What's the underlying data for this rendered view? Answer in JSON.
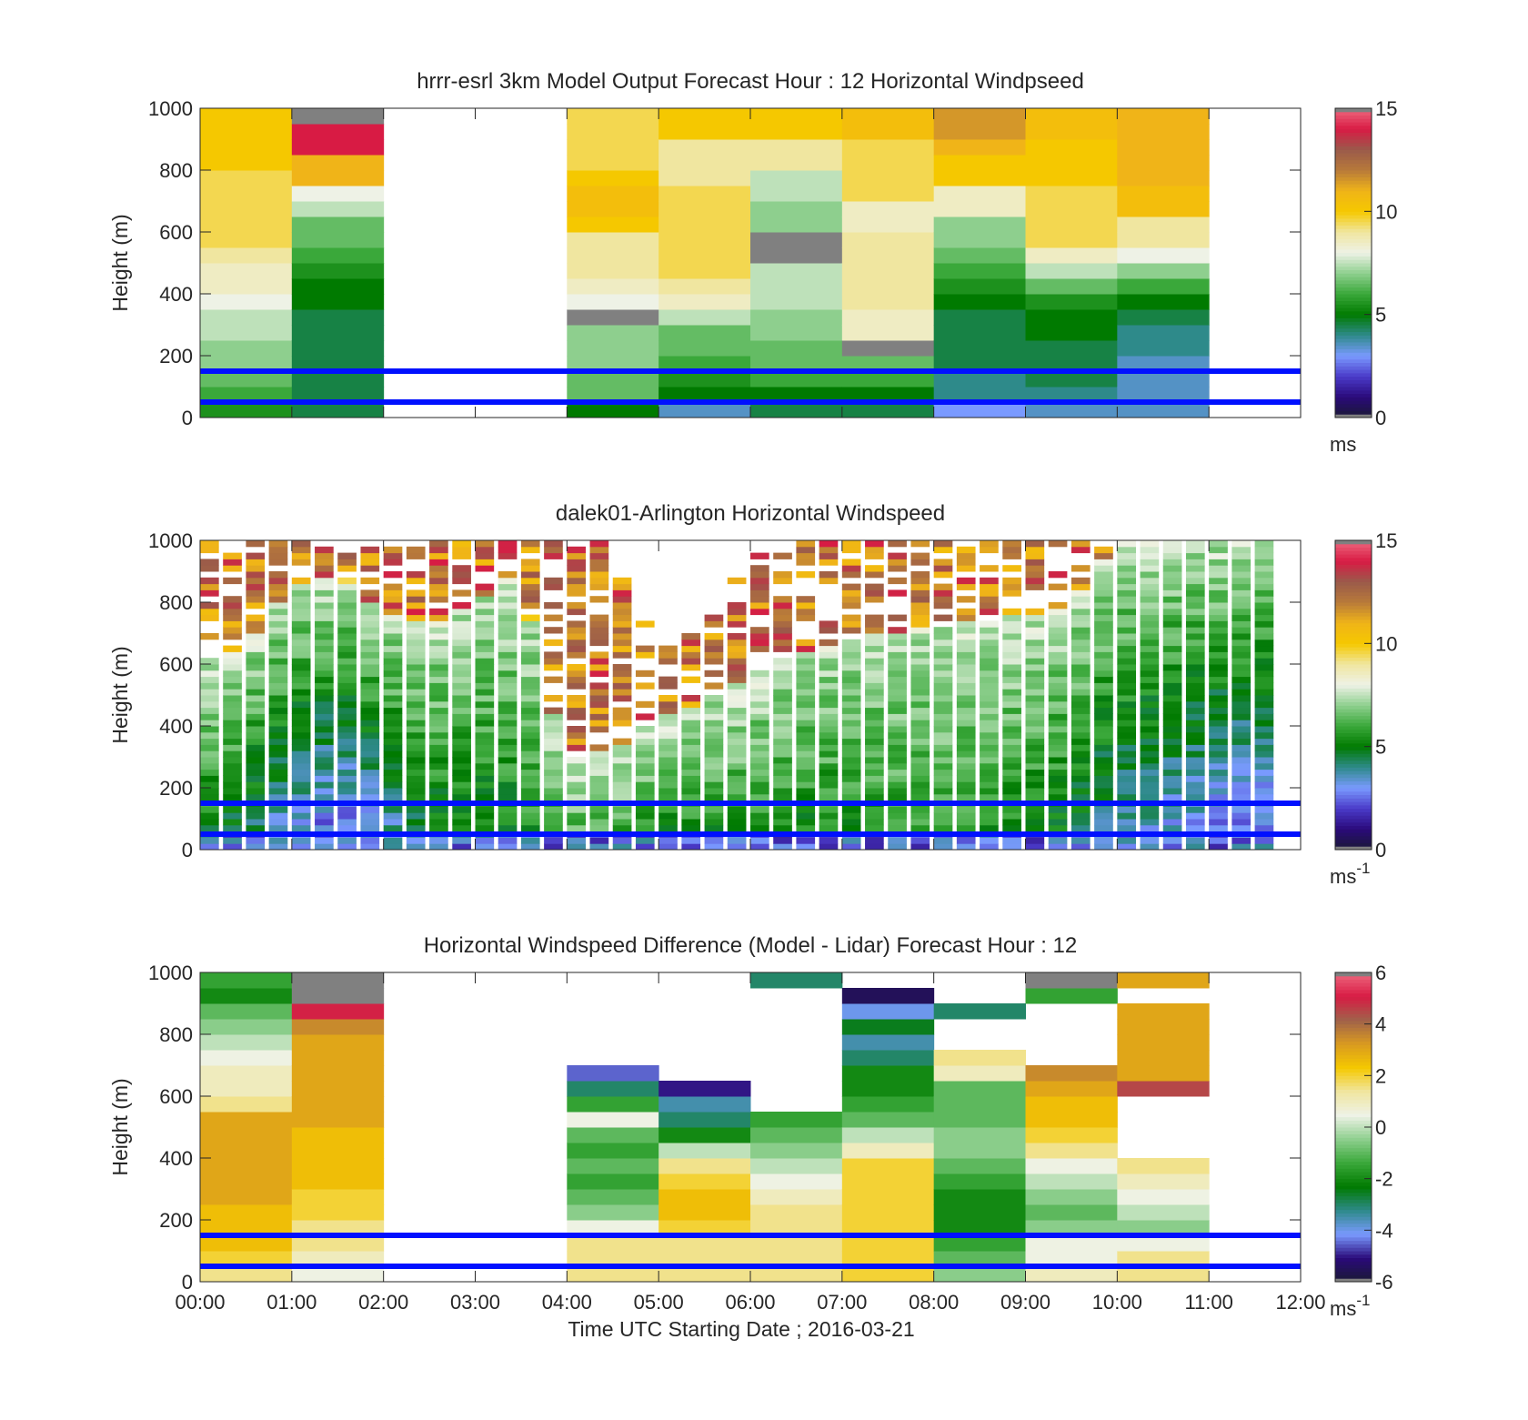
{
  "colors": {
    "speed_scale": [
      "#1a1a33",
      "#2a0a7a",
      "#4a3ac8",
      "#7a9aff",
      "#2e8a8a",
      "#007a00",
      "#3aa83a",
      "#8ecf8e",
      "#eef2e6",
      "#f0e6a0",
      "#f5c800",
      "#f0b418",
      "#b87a3a",
      "#9a5a4a",
      "#d81b44",
      "#ee6a80"
    ],
    "diff_scale": [
      "#1a1a33",
      "#2a0a7a",
      "#7a9aff",
      "#2e8a8a",
      "#007a00",
      "#3aa83a",
      "#8ecf8e",
      "#eef2e6",
      "#f0e6a0",
      "#f5c800",
      "#d99a20",
      "#a0624a",
      "#d81b44",
      "#ee6a80"
    ],
    "reference_lines": "#0010ff",
    "missing": "#808080"
  },
  "reference_heights_m": [
    50,
    150
  ],
  "x_axis": {
    "ticks": [
      "00:00",
      "01:00",
      "02:00",
      "03:00",
      "04:00",
      "05:00",
      "06:00",
      "07:00",
      "08:00",
      "09:00",
      "10:00",
      "11:00",
      "12:00"
    ],
    "label": "Time UTC  Starting Date ; 2016-03-21"
  },
  "chart_data": [
    {
      "type": "heatmap",
      "title": "hrrr-esrl 3km Model Output   Forecast Hour : 12 Horizontal Windpseed",
      "ylabel": "Height (m)",
      "ylim": [
        0,
        1000
      ],
      "yticks": [
        "0",
        "200",
        "400",
        "600",
        "800",
        "1000"
      ],
      "colorbar": {
        "range": [
          0,
          15
        ],
        "ticks": [
          "0",
          "5",
          "10",
          "15"
        ],
        "unit": "ms",
        "unit_sup": ""
      },
      "x": [
        "00:00",
        "01:00",
        "04:00",
        "05:00",
        "06:00",
        "07:00",
        "08:00",
        "09:00",
        "10:00"
      ],
      "heights": [
        25,
        75,
        125,
        175,
        225,
        275,
        325,
        375,
        425,
        475,
        525,
        575,
        625,
        675,
        725,
        775,
        825,
        875,
        925,
        975
      ],
      "values": [
        [
          5.5,
          6,
          6.5,
          7,
          7,
          7.5,
          7.5,
          8,
          8.5,
          8.5,
          9,
          9.5,
          9.5,
          9.5,
          9.5,
          9.5,
          10,
          10,
          10,
          10
        ],
        [
          4.5,
          4.5,
          4.5,
          4.5,
          4.5,
          4.5,
          4.5,
          5,
          5,
          5.5,
          6,
          6.5,
          6.5,
          7.5,
          8,
          11,
          11,
          14,
          14,
          99
        ],
        [
          5,
          6.5,
          6.5,
          7,
          7,
          7,
          99,
          8,
          8.5,
          9,
          9,
          9,
          10,
          10.5,
          10.5,
          10,
          9.5,
          9.5,
          9.5,
          9.5
        ],
        [
          3.5,
          5,
          5.5,
          6,
          6.5,
          6.5,
          7.5,
          8.5,
          9,
          9.5,
          9.5,
          9.5,
          9.5,
          9.5,
          9.5,
          9,
          9,
          9,
          10,
          10
        ],
        [
          4.5,
          5,
          6,
          6.5,
          6.5,
          7,
          7,
          7.5,
          7.5,
          7.5,
          99,
          99,
          7,
          7,
          7.5,
          7.5,
          9,
          9,
          10,
          10
        ],
        [
          4.5,
          5,
          6,
          6.5,
          99,
          8.5,
          8.5,
          9,
          9,
          9,
          9,
          9,
          8.5,
          8.5,
          9.5,
          9.5,
          9.5,
          9.5,
          10.5,
          10.5
        ],
        [
          3,
          4,
          4,
          4.5,
          4.5,
          4.5,
          4.5,
          5,
          5.5,
          6,
          6.5,
          7,
          7,
          8.5,
          8.5,
          10,
          10,
          11,
          11.5,
          11.5
        ],
        [
          3.5,
          4,
          4.5,
          4.5,
          4.5,
          5,
          5,
          5.5,
          6.5,
          7.5,
          8.5,
          9.5,
          9.5,
          9.5,
          9.5,
          10,
          10,
          10,
          10.5,
          10.5
        ],
        [
          3.5,
          3.5,
          3.5,
          3.5,
          4,
          4,
          4.5,
          5,
          6,
          7,
          8,
          9,
          9,
          10.5,
          10.5,
          11,
          11,
          11,
          11,
          11
        ]
      ]
    },
    {
      "type": "heatmap",
      "title": "dalek01-Arlington  Horizontal Windspeed",
      "ylabel": "Height (m)",
      "ylim": [
        0,
        1000
      ],
      "yticks": [
        "0",
        "200",
        "400",
        "600",
        "800",
        "1000"
      ],
      "colorbar": {
        "range": [
          0,
          15
        ],
        "ticks": [
          "0",
          "5",
          "10",
          "15"
        ],
        "unit": "ms",
        "unit_sup": "-1"
      },
      "time_profile": {
        "hours": [
          0,
          0.5,
          1,
          1.5,
          2,
          2.5,
          3,
          3.5,
          4,
          4.5,
          5,
          5.5,
          6,
          6.5,
          7,
          7.5,
          8,
          8.5,
          9,
          9.5,
          10,
          10.5,
          11,
          11.5,
          12
        ],
        "top_m": [
          1000,
          1000,
          1000,
          1000,
          1000,
          1000,
          1000,
          1000,
          1000,
          1000,
          660,
          700,
          950,
          1000,
          1000,
          1000,
          1000,
          1000,
          1000,
          1000,
          1000,
          1000,
          1000,
          1000,
          1000
        ],
        "warm_above_m": [
          620,
          640,
          860,
          900,
          780,
          720,
          800,
          900,
          300,
          320,
          420,
          480,
          560,
          640,
          680,
          700,
          720,
          740,
          760,
          800,
          1000,
          1000,
          1000,
          1000,
          1000
        ],
        "low_jet_speed": [
          5,
          4,
          3,
          2,
          3,
          4.5,
          4.5,
          5,
          6,
          6,
          5,
          5,
          5.5,
          5,
          5,
          5.5,
          5.5,
          5.5,
          5,
          4.5,
          3.5,
          3,
          2.5,
          2,
          2
        ]
      }
    },
    {
      "type": "heatmap",
      "title": "Horizontal Windspeed Difference (Model - Lidar) Forecast Hour : 12",
      "ylabel": "Height (m)",
      "xlabel": "Time UTC  Starting Date ; 2016-03-21",
      "ylim": [
        0,
        1000
      ],
      "yticks": [
        "0",
        "200",
        "400",
        "600",
        "800",
        "1000"
      ],
      "colorbar": {
        "range": [
          -6,
          6
        ],
        "ticks": [
          "-6",
          "-4",
          "-2",
          "0",
          "2",
          "4",
          "6"
        ],
        "unit": "ms",
        "unit_sup": "-1"
      },
      "x": [
        "00:00",
        "01:00",
        "04:00",
        "05:00",
        "06:00",
        "07:00",
        "08:00",
        "09:00",
        "10:00"
      ],
      "heights": [
        25,
        75,
        125,
        175,
        225,
        275,
        325,
        375,
        425,
        475,
        525,
        575,
        625,
        675,
        725,
        775,
        825,
        875,
        925,
        975
      ],
      "values": [
        [
          1.5,
          2,
          2.5,
          2.5,
          2.5,
          3,
          3,
          3,
          3,
          3,
          3,
          1.5,
          1,
          1,
          0.5,
          0,
          -0.5,
          -1,
          -2,
          -1.5
        ],
        [
          0.5,
          1,
          1.5,
          1.5,
          2,
          2,
          2.5,
          2.5,
          2.5,
          2.5,
          3,
          3,
          3,
          3,
          3,
          3,
          3.5,
          5,
          99,
          99
        ],
        [
          1.5,
          1.5,
          1.5,
          0.5,
          -0.5,
          -1,
          -1.5,
          -1,
          -1.5,
          -1,
          0.5,
          -1.5,
          -3,
          -4.5,
          null,
          null,
          null,
          null,
          null,
          null
        ],
        [
          1.5,
          1.5,
          1.5,
          2,
          2.5,
          2.5,
          2,
          1.5,
          0,
          -2,
          -3,
          -3.5,
          -5,
          null,
          null,
          null,
          null,
          null,
          null,
          null
        ],
        [
          1.5,
          1.5,
          1.5,
          1.5,
          1.5,
          1,
          0.5,
          0,
          -0.5,
          -1,
          -1.5,
          null,
          null,
          null,
          null,
          null,
          null,
          null,
          null,
          -3
        ],
        [
          2,
          2,
          2,
          2,
          2,
          2,
          2,
          2,
          1,
          0,
          -1,
          -1.5,
          -2,
          -2,
          -3,
          -3.5,
          -2.5,
          -4,
          -5.5,
          null
        ],
        [
          -0.5,
          -1,
          -1.5,
          -2,
          -2,
          -2,
          -1.5,
          -1,
          -0.5,
          -0.5,
          -1,
          -1,
          -1,
          1,
          1.5,
          null,
          null,
          -3,
          null,
          null
        ],
        [
          1,
          0.5,
          0.5,
          -0.5,
          -1,
          -0.5,
          0,
          0.5,
          1.5,
          2,
          2.5,
          2.5,
          3,
          3.5,
          null,
          null,
          null,
          null,
          -1.5,
          99
        ],
        [
          1.5,
          1.5,
          0.5,
          -0.5,
          0,
          0.5,
          1,
          1.5,
          null,
          null,
          null,
          null,
          4.5,
          3,
          3,
          3,
          3,
          3,
          null,
          3
        ]
      ]
    }
  ]
}
